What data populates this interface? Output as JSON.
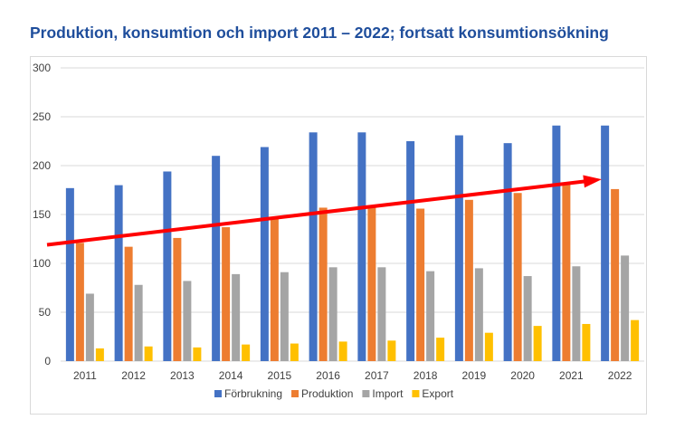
{
  "title": "Produktion, konsumtion och import 2011 – 2022; fortsatt konsumtionsökning",
  "chart_data": {
    "type": "bar",
    "title": "Produktion, konsumtion och import 2011 – 2022; fortsatt konsumtionsökning",
    "xlabel": "",
    "ylabel": "",
    "ylim": [
      0,
      300
    ],
    "yticks": [
      0,
      50,
      100,
      150,
      200,
      250,
      300
    ],
    "grid": true,
    "legend_position": "bottom",
    "categories": [
      "2011",
      "2012",
      "2013",
      "2014",
      "2015",
      "2016",
      "2017",
      "2018",
      "2019",
      "2020",
      "2021",
      "2022"
    ],
    "series": [
      {
        "name": "Förbrukning",
        "color": "#4472c4",
        "values": [
          177,
          180,
          194,
          210,
          219,
          234,
          234,
          225,
          231,
          223,
          241,
          241
        ]
      },
      {
        "name": "Produktion",
        "color": "#ed7d31",
        "values": [
          121,
          117,
          126,
          137,
          146,
          157,
          158,
          156,
          165,
          172,
          181,
          176
        ]
      },
      {
        "name": "Import",
        "color": "#a5a5a5",
        "values": [
          69,
          78,
          82,
          89,
          91,
          96,
          96,
          92,
          95,
          87,
          97,
          108
        ]
      },
      {
        "name": "Export",
        "color": "#ffc000",
        "values": [
          13,
          15,
          14,
          17,
          18,
          20,
          21,
          24,
          29,
          36,
          38,
          42
        ]
      }
    ],
    "annotations": [
      {
        "type": "trend-arrow",
        "color": "#ff0000",
        "from_value": 119,
        "to_value": 186
      }
    ]
  }
}
